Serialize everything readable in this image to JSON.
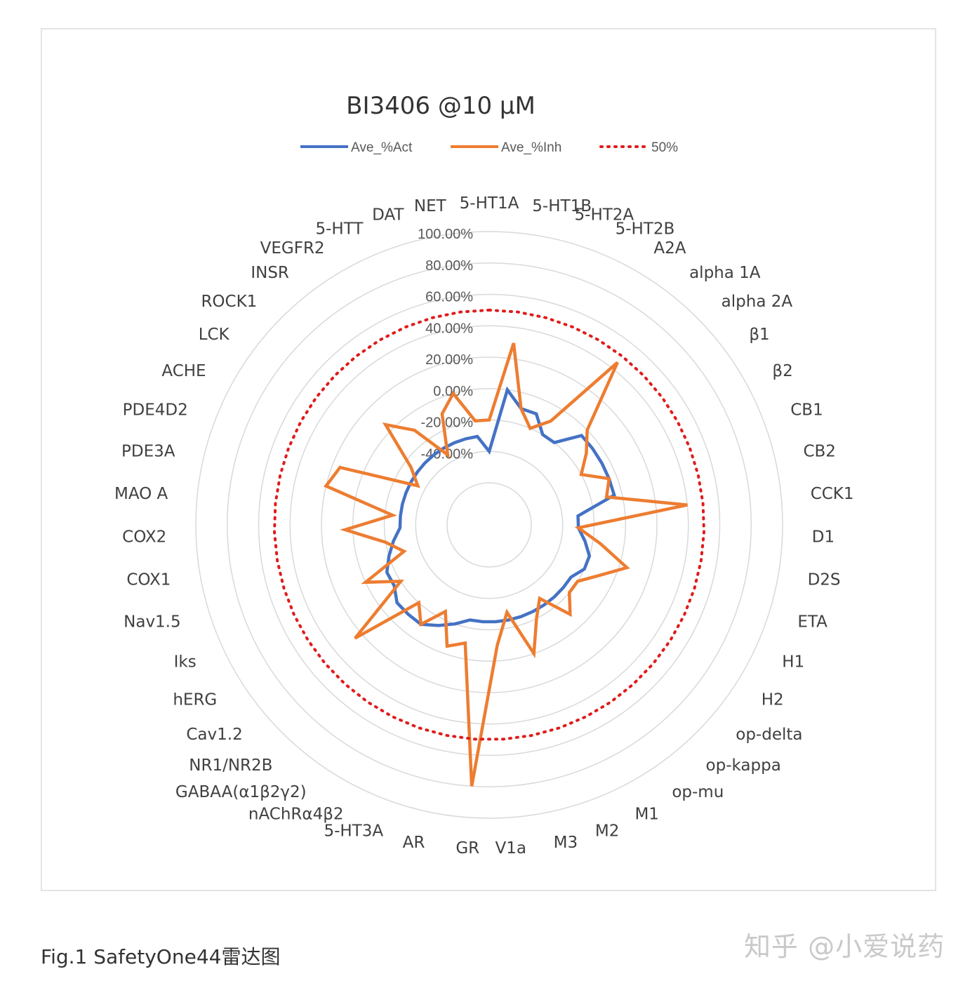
{
  "chart_data": {
    "type": "radar",
    "title": "BI3406 @10 μM",
    "categories": [
      "5-HT1A",
      "5-HT1B",
      "5-HT2A",
      "5-HT2B",
      "A2A",
      "alpha 1A",
      "alpha 2A",
      "β1",
      "β2",
      "CB1",
      "CB2",
      "CCK1",
      "D1",
      "D2S",
      "ETA",
      "H1",
      "H2",
      "op-delta",
      "op-kappa",
      "op-mu",
      "M1",
      "M2",
      "M3",
      "V1a",
      "GR",
      "AR",
      "5-HT3A",
      "nAChRα4β2",
      "GABAA(α1β2γ2)",
      "NR1/NR2B",
      "Cav1.2",
      "hERG",
      "Iks",
      "Nav1.5",
      "COX1",
      "COX2",
      "MAO A",
      "PDE3A",
      "PDE4D2",
      "ACHE",
      "LCK",
      "ROCK1",
      "INSR",
      "VEGFR2",
      "5-HTT",
      "DAT",
      "NET"
    ],
    "series": [
      {
        "name": "Ave_%Act",
        "color": "#4472c4",
        "dash": "solid",
        "values": [
          -40,
          0,
          -10,
          -10,
          -20,
          -20,
          -5,
          -5,
          -5,
          -5,
          -5,
          -30,
          -30,
          -25,
          -20,
          -20,
          -25,
          -25,
          -25,
          -25,
          -25,
          -25,
          -25,
          -25,
          -25,
          -25,
          -20,
          -15,
          -10,
          -10,
          -10,
          -15,
          -15,
          -20,
          -25,
          -30,
          -30,
          -30,
          -30,
          -30,
          -30,
          -30,
          -30,
          -30,
          -30,
          -30,
          -30
        ]
      },
      {
        "name": "Ave_%Inh",
        "color": "#ed7d31",
        "dash": "solid",
        "values": [
          -20,
          30,
          -10,
          -20,
          -10,
          45,
          0,
          -10,
          -20,
          -5,
          -10,
          40,
          -30,
          -15,
          5,
          -10,
          -20,
          -20,
          -10,
          -30,
          -20,
          0,
          -30,
          -10,
          80,
          -10,
          -5,
          -25,
          -10,
          -20,
          25,
          -20,
          0,
          -30,
          -20,
          5,
          -25,
          20,
          15,
          -35,
          -25,
          5,
          -10,
          -35,
          -10,
          0,
          -20
        ]
      },
      {
        "name": "50%",
        "color": "#e01b1b",
        "dash": "dotted",
        "values": [
          50,
          50,
          50,
          50,
          50,
          50,
          50,
          50,
          50,
          50,
          50,
          50,
          50,
          50,
          50,
          50,
          50,
          50,
          50,
          50,
          50,
          50,
          50,
          50,
          50,
          50,
          50,
          50,
          50,
          50,
          50,
          50,
          50,
          50,
          50,
          50,
          50,
          50,
          50,
          50,
          50,
          50,
          50,
          50,
          50,
          50,
          50
        ]
      }
    ],
    "r_ticks": [
      "-40.00%",
      "-20.00%",
      "0.00%",
      "20.00%",
      "40.00%",
      "60.00%",
      "80.00%",
      "100.00%"
    ],
    "rlim": [
      -60,
      100
    ],
    "legend_position": "top",
    "grid": true
  },
  "caption": "Fig.1 SafetyOne44雷达图",
  "watermark": "知乎 @小爱说药"
}
